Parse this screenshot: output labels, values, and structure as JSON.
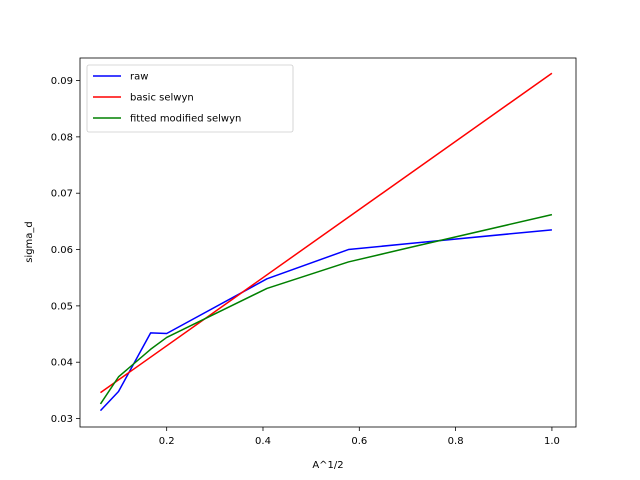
{
  "chart_data": {
    "type": "line",
    "title": "",
    "xlabel": "A^1/2",
    "ylabel": "sigma_d",
    "xlim": [
      0.02,
      1.05
    ],
    "ylim": [
      0.0285,
      0.094
    ],
    "xticks": [
      0.2,
      0.4,
      0.6,
      0.8,
      1.0
    ],
    "xtick_labels": [
      "0.2",
      "0.4",
      "0.6",
      "0.8",
      "1.0"
    ],
    "yticks": [
      0.03,
      0.04,
      0.05,
      0.06,
      0.07,
      0.08,
      0.09
    ],
    "ytick_labels": [
      "0.03",
      "0.04",
      "0.05",
      "0.06",
      "0.07",
      "0.08",
      "0.09"
    ],
    "grid": false,
    "legend_position": "top-left",
    "series": [
      {
        "name": "raw",
        "color": "#0000ff",
        "x": [
          0.0625,
          0.1,
          0.1667,
          0.2,
          0.4082,
          0.5774,
          0.7071,
          1.0
        ],
        "y": [
          0.0314,
          0.0348,
          0.0452,
          0.0451,
          0.0548,
          0.06,
          0.0611,
          0.0635
        ]
      },
      {
        "name": "basic selwyn",
        "color": "#ff0000",
        "x": [
          0.0625,
          1.0
        ],
        "y": [
          0.0346,
          0.0913
        ]
      },
      {
        "name": "fitted modified selwyn",
        "color": "#008000",
        "x": [
          0.0625,
          0.1,
          0.1667,
          0.2,
          0.4082,
          0.5774,
          0.7071,
          1.0
        ],
        "y": [
          0.0326,
          0.0374,
          0.0423,
          0.0444,
          0.0531,
          0.0578,
          0.0604,
          0.0662
        ]
      }
    ]
  }
}
